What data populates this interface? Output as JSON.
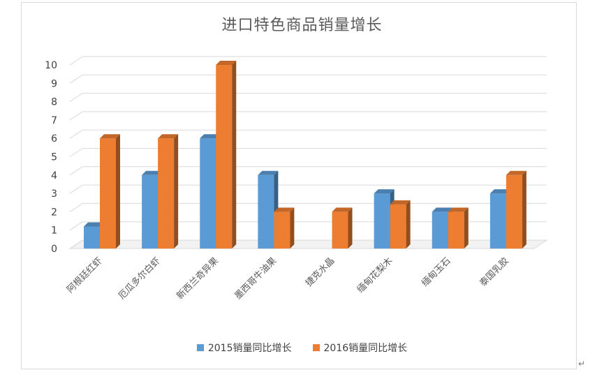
{
  "chart_data": {
    "type": "bar",
    "title": "进口特色商品销量增长",
    "categories": [
      "阿根廷红虾",
      "厄瓜多尔白虾",
      "新西兰奇异果",
      "墨西哥牛油果",
      "捷克水晶",
      "缅甸花梨木",
      "缅甸玉石",
      "泰国乳胶"
    ],
    "series": [
      {
        "name": "2015销量同比增长",
        "color": "#5B9BD5",
        "values": [
          1.2,
          4,
          6,
          4,
          0,
          3,
          2,
          3
        ]
      },
      {
        "name": "2016销量同比增长",
        "color": "#ED7D31",
        "values": [
          6,
          6,
          10,
          2,
          2,
          2.4,
          2,
          4
        ]
      }
    ],
    "yticks": [
      "0",
      "1",
      "2",
      "3",
      "4",
      "5",
      "6",
      "7",
      "8",
      "9",
      "10"
    ],
    "ylim": [
      0,
      10
    ],
    "grid": true,
    "legend_position": "bottom"
  },
  "page": {
    "return_mark": "↵"
  }
}
